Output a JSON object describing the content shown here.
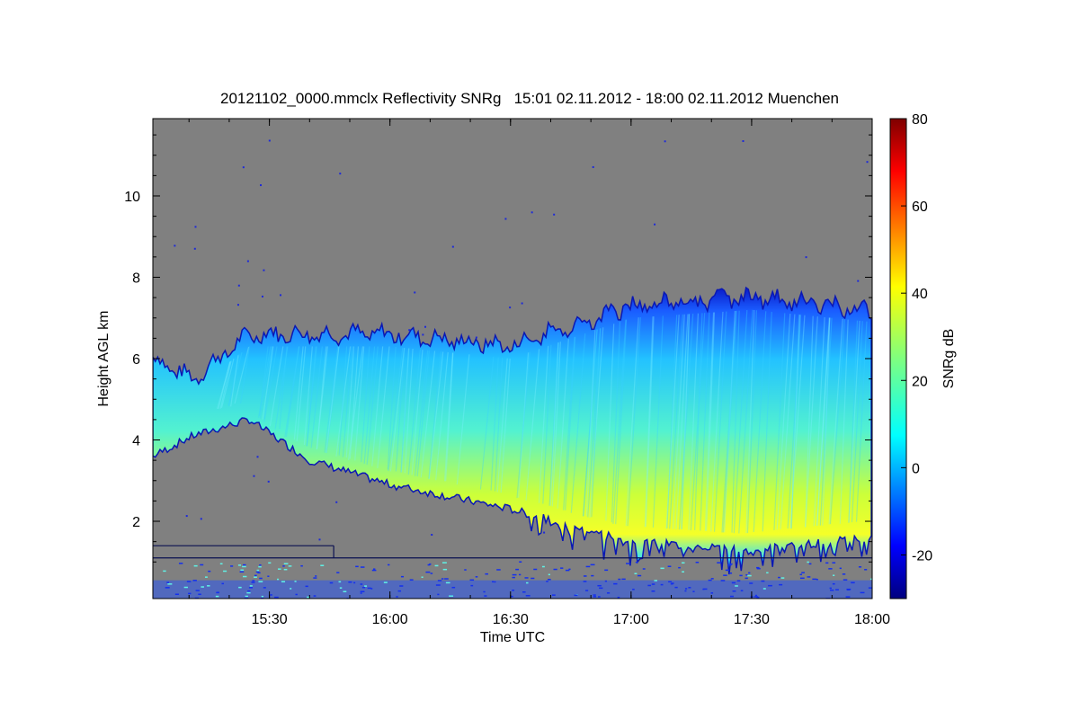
{
  "chart_data": {
    "type": "heatmap",
    "title": "20121102_0000.mmclx Reflectivity SNRg   15:01 02.11.2012 - 18:00 02.11.2012 Muenchen",
    "xlabel": "Time UTC",
    "ylabel": "Height AGL km",
    "x_range": [
      "15:01",
      "18:00"
    ],
    "x_ticks": [
      "15:30",
      "16:00",
      "16:30",
      "17:00",
      "17:30",
      "18:00"
    ],
    "ylim": [
      0.1,
      11.9
    ],
    "y_ticks": [
      2,
      4,
      6,
      8,
      10
    ],
    "colorbar": {
      "label": "SNRg dB",
      "range": [
        -30,
        80
      ],
      "ticks": [
        -20,
        0,
        20,
        40,
        60,
        80
      ],
      "colormap": "jet"
    },
    "background_color": "#808080",
    "cloud_layer": {
      "description_points": [
        {
          "time": "15:01",
          "base_km": 3.6,
          "top_km": 6.0
        },
        {
          "time": "15:11",
          "base_km": 4.1,
          "top_km": 5.5
        },
        {
          "time": "15:25",
          "base_km": 4.5,
          "top_km": 6.6
        },
        {
          "time": "15:40",
          "base_km": 3.5,
          "top_km": 6.6
        },
        {
          "time": "16:00",
          "base_km": 2.9,
          "top_km": 6.6
        },
        {
          "time": "16:30",
          "base_km": 2.3,
          "top_km": 6.3
        },
        {
          "time": "17:00",
          "base_km": 1.5,
          "top_km": 7.3
        },
        {
          "time": "17:30",
          "base_km": 1.3,
          "top_km": 7.5
        },
        {
          "time": "18:00",
          "base_km": 1.6,
          "top_km": 7.2
        }
      ],
      "max_snr_db": 38,
      "max_snr_height_km": 3.0
    }
  }
}
